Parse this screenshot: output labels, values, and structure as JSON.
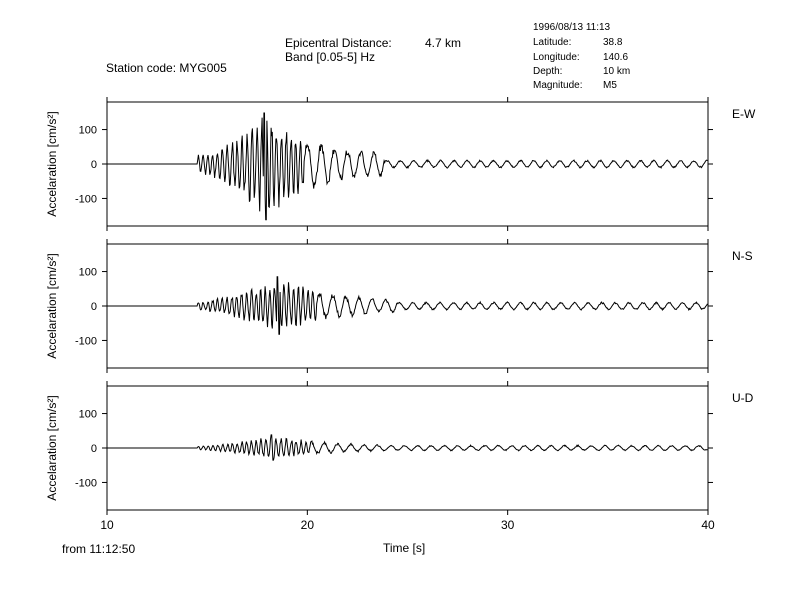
{
  "header": {
    "station_label": "Station code: MYG005",
    "epicentral_label": "Epicentral Distance:",
    "epicentral_value": "4.7 km",
    "band_label": "Band [0.05-5] Hz",
    "event_datetime": "1996/08/13 11:13",
    "latitude_label": "Latitude:",
    "latitude_value": "38.8",
    "longitude_label": "Longitude:",
    "longitude_value": "140.6",
    "depth_label": "Depth:",
    "depth_value": "10 km",
    "magnitude_label": "Magnitude:",
    "magnitude_value": "M5"
  },
  "footer": {
    "start_time": "from 11:12:50"
  },
  "chart_data": {
    "type": "line",
    "xlabel": "Time [s]",
    "xlim": [
      10,
      40
    ],
    "xticks": [
      10,
      20,
      30,
      40
    ],
    "ylabel": "Accelaration [cm/s²]",
    "ylim": [
      -180,
      180
    ],
    "yticks": [
      100,
      0,
      -100
    ],
    "grid": false,
    "colors": {
      "line": "#000000",
      "axis": "#000000"
    },
    "series": [
      {
        "name": "E-W",
        "onset": 14.5,
        "peak_time": 17.85,
        "peak_positive": 148,
        "peak_negative": -162
      },
      {
        "name": "N-S",
        "onset": 14.5,
        "peak_time": 18.5,
        "peak_positive": 85,
        "peak_negative": -82
      },
      {
        "name": "U-D",
        "onset": 14.5,
        "peak_time": 18.2,
        "peak_positive": 38,
        "peak_negative": -35
      }
    ]
  }
}
